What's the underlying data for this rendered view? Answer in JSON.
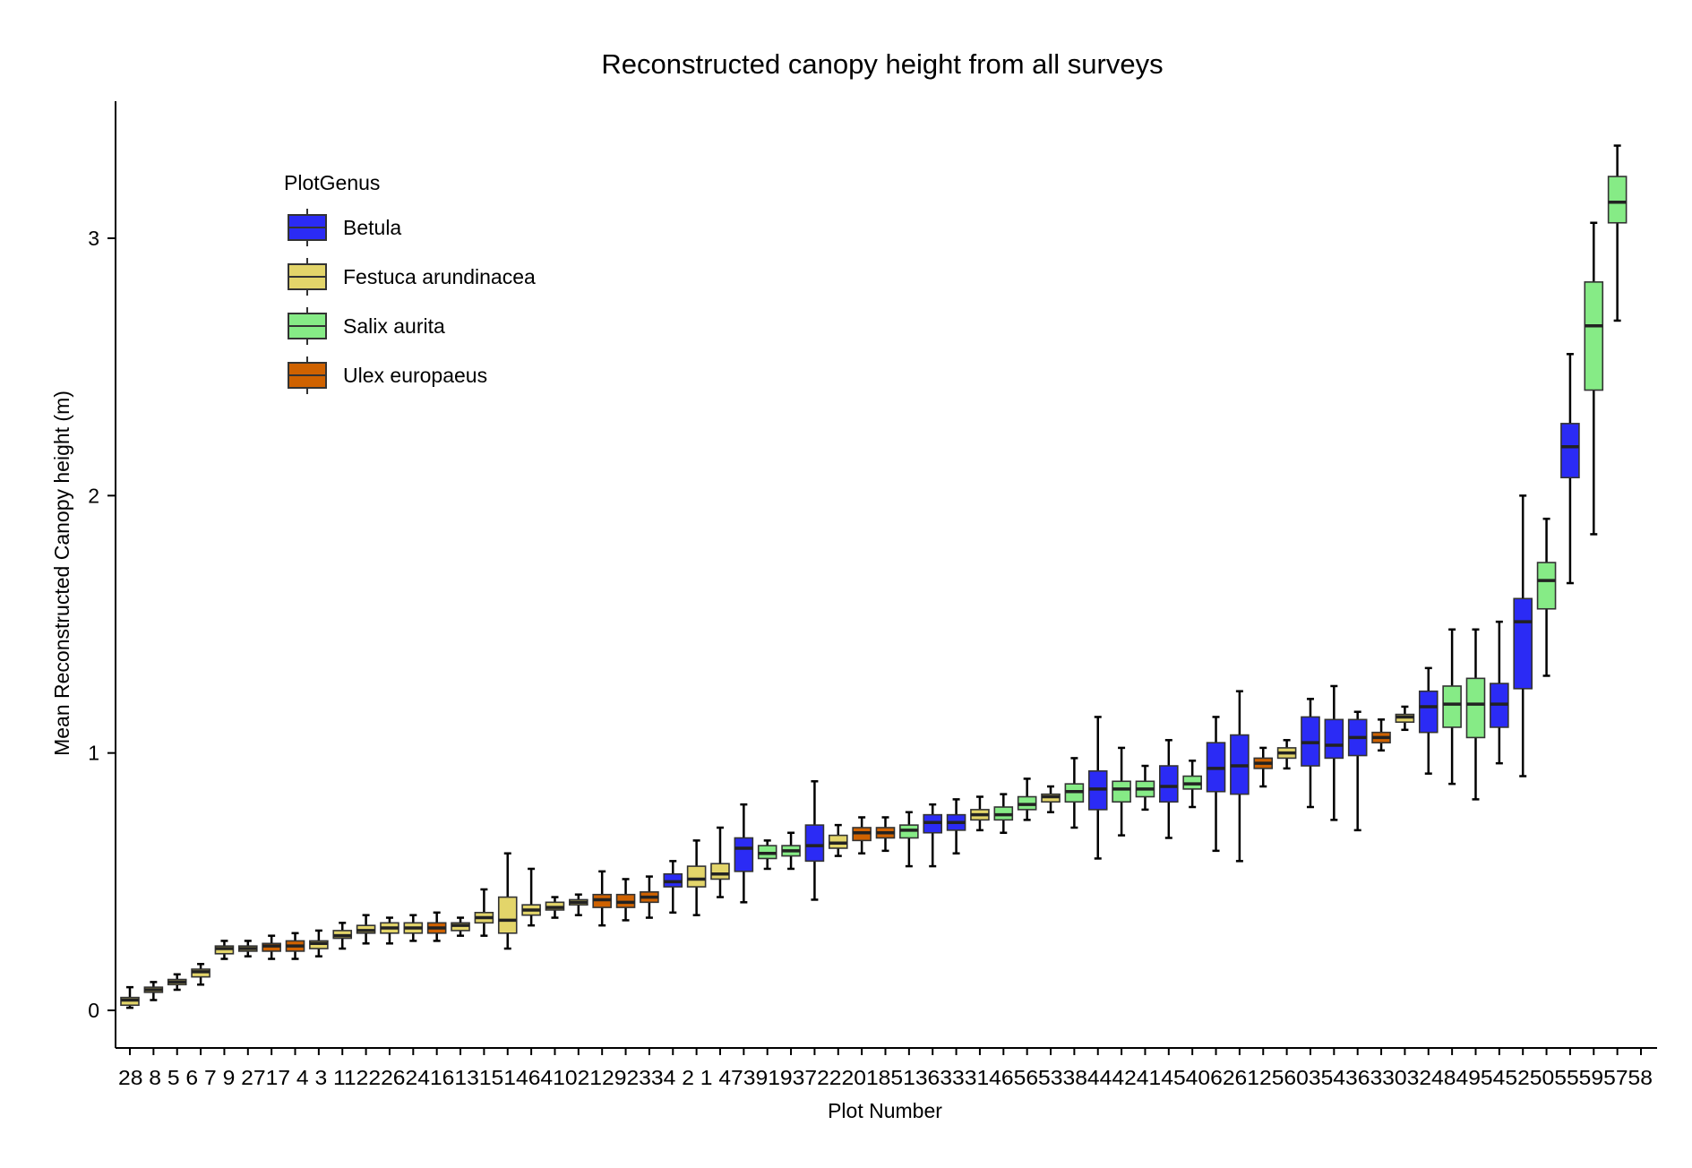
{
  "chart_data": {
    "type": "box",
    "title": "Reconstructed canopy height from all surveys",
    "xlabel": "Plot Number",
    "ylabel": "Mean Reconstructed Canopy height (m)",
    "ylim": [
      -0.16,
      3.52
    ],
    "yticks": [
      0,
      1,
      2,
      3
    ],
    "grid": false,
    "legend": {
      "title": "PlotGenus",
      "placement": "top-left",
      "entries": [
        {
          "name": "Betula",
          "color": "#2b2bf5"
        },
        {
          "name": "Festuca arundinacea",
          "color": "#e3d56a"
        },
        {
          "name": "Salix aurita",
          "color": "#86eb86"
        },
        {
          "name": "Ulex europaeus",
          "color": "#cf6200"
        }
      ]
    },
    "categories": [
      "28",
      "8",
      "5",
      "6",
      "7",
      "9",
      "27",
      "17",
      "4",
      "3",
      "11",
      "22",
      "26",
      "24",
      "16",
      "13",
      "15",
      "14",
      "64",
      "10",
      "21",
      "29",
      "23",
      "34",
      "2",
      "1",
      "47",
      "39",
      "19",
      "37",
      "22",
      "20",
      "18",
      "51",
      "36",
      "33",
      "31",
      "46",
      "56",
      "53",
      "38",
      "44",
      "42",
      "41",
      "45",
      "40",
      "6",
      "26",
      "12",
      "56",
      "0",
      "35",
      "43",
      "63",
      "30",
      "32",
      "48",
      "49",
      "54",
      "52",
      "50",
      "55",
      "59",
      "57",
      "58"
    ],
    "series": [
      {
        "x": "28",
        "genus": "Festuca arundinacea",
        "min": 0.01,
        "q1": 0.02,
        "median": 0.04,
        "q3": 0.05,
        "max": 0.09
      },
      {
        "x": "8",
        "genus": "Festuca arundinacea",
        "min": 0.04,
        "q1": 0.07,
        "median": 0.08,
        "q3": 0.09,
        "max": 0.11
      },
      {
        "x": "5",
        "genus": "Festuca arundinacea",
        "min": 0.08,
        "q1": 0.1,
        "median": 0.11,
        "q3": 0.12,
        "max": 0.14
      },
      {
        "x": "6",
        "genus": "Festuca arundinacea",
        "min": 0.1,
        "q1": 0.13,
        "median": 0.15,
        "q3": 0.16,
        "max": 0.18
      },
      {
        "x": "7",
        "genus": "Festuca arundinacea",
        "min": 0.2,
        "q1": 0.22,
        "median": 0.24,
        "q3": 0.25,
        "max": 0.27
      },
      {
        "x": "9",
        "genus": "Festuca arundinacea",
        "min": 0.21,
        "q1": 0.23,
        "median": 0.24,
        "q3": 0.25,
        "max": 0.27
      },
      {
        "x": "27",
        "genus": "Ulex europaeus",
        "min": 0.2,
        "q1": 0.23,
        "median": 0.25,
        "q3": 0.26,
        "max": 0.29
      },
      {
        "x": "17",
        "genus": "Ulex europaeus",
        "min": 0.2,
        "q1": 0.23,
        "median": 0.25,
        "q3": 0.27,
        "max": 0.3
      },
      {
        "x": "4",
        "genus": "Festuca arundinacea",
        "min": 0.21,
        "q1": 0.24,
        "median": 0.26,
        "q3": 0.27,
        "max": 0.31
      },
      {
        "x": "3",
        "genus": "Festuca arundinacea",
        "min": 0.24,
        "q1": 0.28,
        "median": 0.29,
        "q3": 0.31,
        "max": 0.34
      },
      {
        "x": "11",
        "genus": "Festuca arundinacea",
        "min": 0.26,
        "q1": 0.3,
        "median": 0.31,
        "q3": 0.33,
        "max": 0.37
      },
      {
        "x": "22",
        "genus": "Festuca arundinacea",
        "min": 0.26,
        "q1": 0.3,
        "median": 0.32,
        "q3": 0.34,
        "max": 0.36
      },
      {
        "x": "26",
        "genus": "Festuca arundinacea",
        "min": 0.27,
        "q1": 0.3,
        "median": 0.32,
        "q3": 0.34,
        "max": 0.37
      },
      {
        "x": "24",
        "genus": "Ulex europaeus",
        "min": 0.27,
        "q1": 0.3,
        "median": 0.32,
        "q3": 0.34,
        "max": 0.38
      },
      {
        "x": "16",
        "genus": "Festuca arundinacea",
        "min": 0.29,
        "q1": 0.31,
        "median": 0.33,
        "q3": 0.34,
        "max": 0.36
      },
      {
        "x": "13",
        "genus": "Festuca arundinacea",
        "min": 0.29,
        "q1": 0.34,
        "median": 0.36,
        "q3": 0.38,
        "max": 0.47
      },
      {
        "x": "15",
        "genus": "Festuca arundinacea",
        "min": 0.24,
        "q1": 0.3,
        "median": 0.35,
        "q3": 0.44,
        "max": 0.61
      },
      {
        "x": "14",
        "genus": "Festuca arundinacea",
        "min": 0.33,
        "q1": 0.37,
        "median": 0.39,
        "q3": 0.41,
        "max": 0.55
      },
      {
        "x": "64",
        "genus": "Festuca arundinacea",
        "min": 0.36,
        "q1": 0.39,
        "median": 0.4,
        "q3": 0.42,
        "max": 0.44
      },
      {
        "x": "10",
        "genus": "Festuca arundinacea",
        "min": 0.37,
        "q1": 0.41,
        "median": 0.42,
        "q3": 0.43,
        "max": 0.45
      },
      {
        "x": "21",
        "genus": "Ulex europaeus",
        "min": 0.33,
        "q1": 0.4,
        "median": 0.43,
        "q3": 0.45,
        "max": 0.54
      },
      {
        "x": "29",
        "genus": "Ulex europaeus",
        "min": 0.35,
        "q1": 0.4,
        "median": 0.42,
        "q3": 0.45,
        "max": 0.51
      },
      {
        "x": "23",
        "genus": "Ulex europaeus",
        "min": 0.36,
        "q1": 0.42,
        "median": 0.44,
        "q3": 0.46,
        "max": 0.52
      },
      {
        "x": "34",
        "genus": "Betula",
        "min": 0.38,
        "q1": 0.48,
        "median": 0.5,
        "q3": 0.53,
        "max": 0.58
      },
      {
        "x": "2",
        "genus": "Festuca arundinacea",
        "min": 0.37,
        "q1": 0.48,
        "median": 0.51,
        "q3": 0.56,
        "max": 0.66
      },
      {
        "x": "1",
        "genus": "Festuca arundinacea",
        "min": 0.44,
        "q1": 0.51,
        "median": 0.53,
        "q3": 0.57,
        "max": 0.71
      },
      {
        "x": "47",
        "genus": "Betula",
        "min": 0.42,
        "q1": 0.54,
        "median": 0.63,
        "q3": 0.67,
        "max": 0.8
      },
      {
        "x": "39",
        "genus": "Salix aurita",
        "min": 0.55,
        "q1": 0.59,
        "median": 0.61,
        "q3": 0.64,
        "max": 0.66
      },
      {
        "x": "19",
        "genus": "Salix aurita",
        "min": 0.55,
        "q1": 0.6,
        "median": 0.62,
        "q3": 0.64,
        "max": 0.69
      },
      {
        "x": "37",
        "genus": "Betula",
        "min": 0.43,
        "q1": 0.58,
        "median": 0.64,
        "q3": 0.72,
        "max": 0.89
      },
      {
        "x": "22",
        "genus": "Festuca arundinacea",
        "min": 0.6,
        "q1": 0.63,
        "median": 0.65,
        "q3": 0.68,
        "max": 0.72
      },
      {
        "x": "20",
        "genus": "Ulex europaeus",
        "min": 0.61,
        "q1": 0.66,
        "median": 0.69,
        "q3": 0.71,
        "max": 0.75
      },
      {
        "x": "18",
        "genus": "Ulex europaeus",
        "min": 0.62,
        "q1": 0.67,
        "median": 0.69,
        "q3": 0.71,
        "max": 0.75
      },
      {
        "x": "51",
        "genus": "Salix aurita",
        "min": 0.56,
        "q1": 0.67,
        "median": 0.7,
        "q3": 0.72,
        "max": 0.77
      },
      {
        "x": "36",
        "genus": "Betula",
        "min": 0.56,
        "q1": 0.69,
        "median": 0.73,
        "q3": 0.76,
        "max": 0.8
      },
      {
        "x": "33",
        "genus": "Betula",
        "min": 0.61,
        "q1": 0.7,
        "median": 0.73,
        "q3": 0.76,
        "max": 0.82
      },
      {
        "x": "31",
        "genus": "Festuca arundinacea",
        "min": 0.7,
        "q1": 0.74,
        "median": 0.76,
        "q3": 0.78,
        "max": 0.83
      },
      {
        "x": "46",
        "genus": "Salix aurita",
        "min": 0.69,
        "q1": 0.74,
        "median": 0.76,
        "q3": 0.79,
        "max": 0.84
      },
      {
        "x": "56",
        "genus": "Salix aurita",
        "min": 0.74,
        "q1": 0.78,
        "median": 0.8,
        "q3": 0.83,
        "max": 0.9
      },
      {
        "x": "53",
        "genus": "Festuca arundinacea",
        "min": 0.77,
        "q1": 0.81,
        "median": 0.83,
        "q3": 0.84,
        "max": 0.87
      },
      {
        "x": "38",
        "genus": "Salix aurita",
        "min": 0.71,
        "q1": 0.81,
        "median": 0.85,
        "q3": 0.88,
        "max": 0.98
      },
      {
        "x": "44",
        "genus": "Betula",
        "min": 0.59,
        "q1": 0.78,
        "median": 0.86,
        "q3": 0.93,
        "max": 1.14
      },
      {
        "x": "42",
        "genus": "Salix aurita",
        "min": 0.68,
        "q1": 0.81,
        "median": 0.86,
        "q3": 0.89,
        "max": 1.02
      },
      {
        "x": "41",
        "genus": "Salix aurita",
        "min": 0.78,
        "q1": 0.83,
        "median": 0.86,
        "q3": 0.89,
        "max": 0.95
      },
      {
        "x": "45",
        "genus": "Betula",
        "min": 0.67,
        "q1": 0.81,
        "median": 0.87,
        "q3": 0.95,
        "max": 1.05
      },
      {
        "x": "40",
        "genus": "Salix aurita",
        "min": 0.79,
        "q1": 0.86,
        "median": 0.88,
        "q3": 0.91,
        "max": 0.97
      },
      {
        "x": "6",
        "genus": "Betula",
        "min": 0.62,
        "q1": 0.85,
        "median": 0.94,
        "q3": 1.04,
        "max": 1.14
      },
      {
        "x": "26",
        "genus": "Betula",
        "min": 0.58,
        "q1": 0.84,
        "median": 0.95,
        "q3": 1.07,
        "max": 1.24
      },
      {
        "x": "12",
        "genus": "Ulex europaeus",
        "min": 0.87,
        "q1": 0.94,
        "median": 0.96,
        "q3": 0.98,
        "max": 1.02
      },
      {
        "x": "56",
        "genus": "Festuca arundinacea",
        "min": 0.94,
        "q1": 0.98,
        "median": 1.0,
        "q3": 1.02,
        "max": 1.05
      },
      {
        "x": "0",
        "genus": "Betula",
        "min": 0.79,
        "q1": 0.95,
        "median": 1.04,
        "q3": 1.14,
        "max": 1.21
      },
      {
        "x": "35",
        "genus": "Betula",
        "min": 0.74,
        "q1": 0.98,
        "median": 1.03,
        "q3": 1.13,
        "max": 1.26
      },
      {
        "x": "43",
        "genus": "Betula",
        "min": 0.7,
        "q1": 0.99,
        "median": 1.06,
        "q3": 1.13,
        "max": 1.16
      },
      {
        "x": "63",
        "genus": "Ulex europaeus",
        "min": 1.01,
        "q1": 1.04,
        "median": 1.06,
        "q3": 1.08,
        "max": 1.13
      },
      {
        "x": "30",
        "genus": "Festuca arundinacea",
        "min": 1.09,
        "q1": 1.12,
        "median": 1.14,
        "q3": 1.15,
        "max": 1.18
      },
      {
        "x": "32",
        "genus": "Betula",
        "min": 0.92,
        "q1": 1.08,
        "median": 1.18,
        "q3": 1.24,
        "max": 1.33
      },
      {
        "x": "48",
        "genus": "Salix aurita",
        "min": 0.88,
        "q1": 1.1,
        "median": 1.19,
        "q3": 1.26,
        "max": 1.48
      },
      {
        "x": "49",
        "genus": "Salix aurita",
        "min": 0.82,
        "q1": 1.06,
        "median": 1.19,
        "q3": 1.29,
        "max": 1.48
      },
      {
        "x": "54",
        "genus": "Betula",
        "min": 0.96,
        "q1": 1.1,
        "median": 1.19,
        "q3": 1.27,
        "max": 1.51
      },
      {
        "x": "52",
        "genus": "Betula",
        "min": 0.91,
        "q1": 1.25,
        "median": 1.51,
        "q3": 1.6,
        "max": 2.0
      },
      {
        "x": "50",
        "genus": "Salix aurita",
        "min": 1.3,
        "q1": 1.56,
        "median": 1.67,
        "q3": 1.74,
        "max": 1.91
      },
      {
        "x": "55",
        "genus": "Betula",
        "min": 1.66,
        "q1": 2.07,
        "median": 2.19,
        "q3": 2.28,
        "max": 2.55
      },
      {
        "x": "59",
        "genus": "Salix aurita",
        "min": 1.85,
        "q1": 2.41,
        "median": 2.66,
        "q3": 2.83,
        "max": 3.06
      },
      {
        "x": "57",
        "genus": "Salix aurita",
        "min": 2.68,
        "q1": 3.06,
        "median": 3.14,
        "q3": 3.24,
        "max": 3.36
      },
      {
        "x": "58",
        "genus": "Salix aurita",
        "min": null,
        "q1": null,
        "median": null,
        "q3": null,
        "max": null
      }
    ],
    "tick_label_row": "28  8  5  6  7  9 2717  4  3 1122262416131514641021292334  2  1 4739193722201851363331465653384442414540626125603543633032484954525055595758"
  }
}
